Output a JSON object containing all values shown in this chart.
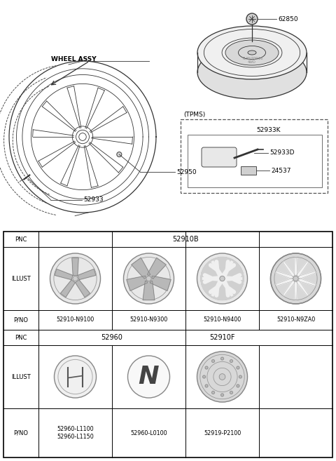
{
  "bg_color": "#ffffff",
  "row1_pnc": "52910B",
  "row1_parts": [
    "52910-N9100",
    "52910-N9300",
    "52910-N9400",
    "52910-N9ZA0"
  ],
  "row2_pnc1": "52960",
  "row2_pnc2": "52910F",
  "row2_parts": [
    "52960-L1100\n52960-L1150",
    "52960-L0100",
    "52919-P2100"
  ],
  "label_62850": "62850",
  "label_52950": "52950",
  "label_52933": "52933",
  "label_wheel_assy": "WHEEL ASSY",
  "label_tpms": "(TPMS)",
  "label_52933K": "52933K",
  "label_52933D": "52933D",
  "label_24537": "24537"
}
